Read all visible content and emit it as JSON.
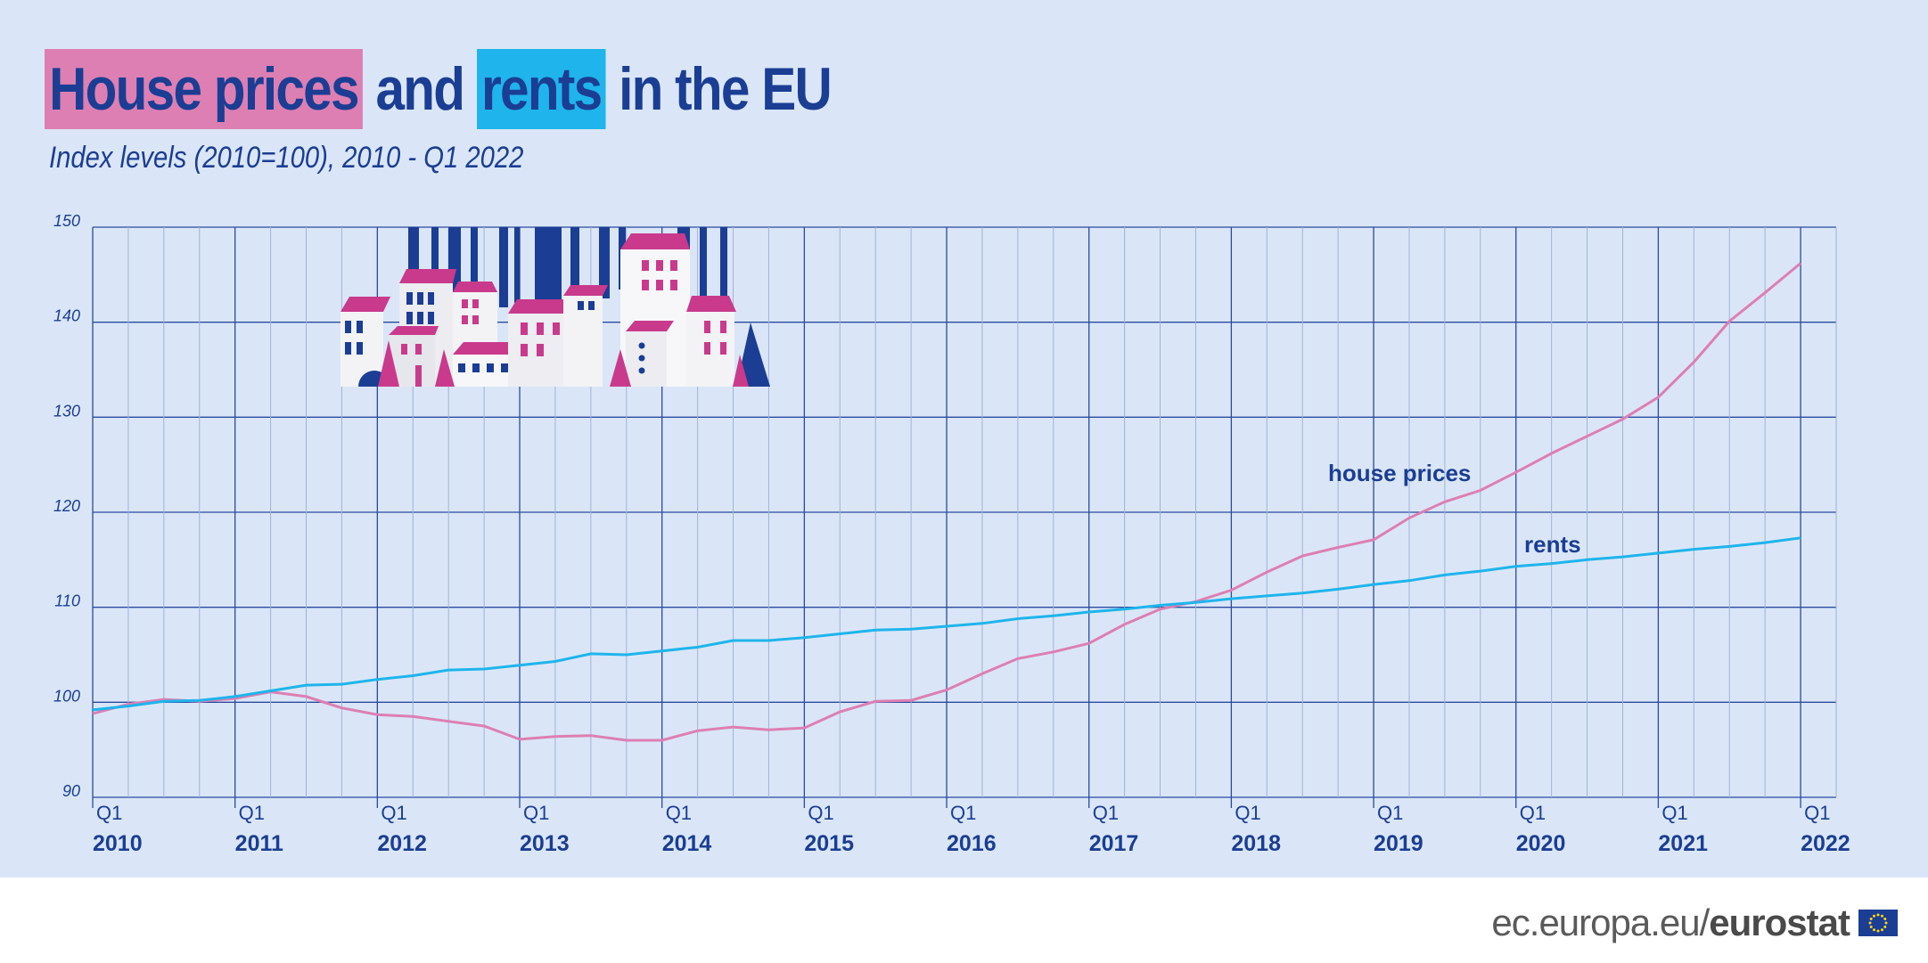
{
  "header": {
    "title_part1": "House prices",
    "title_part2": " and ",
    "title_part3": "rents",
    "title_part4": " in the EU",
    "subtitle": "Index levels (2010=100), 2010 - Q1 2022"
  },
  "footer": {
    "url_prefix": "ec.europa.eu/",
    "brand": "eurostat",
    "logo_icon": "eu-flag-icon"
  },
  "colors": {
    "house_prices": "#dd7fb3",
    "rents": "#1fb4ec",
    "text": "#1b3d93",
    "background": "#dae6f7"
  },
  "chart_data": {
    "type": "line",
    "ylim": [
      90,
      150
    ],
    "yticks": [
      90,
      100,
      110,
      120,
      130,
      140,
      150
    ],
    "xlim": [
      2010.0,
      2022.25
    ],
    "year_labels": [
      "2010",
      "2011",
      "2012",
      "2013",
      "2014",
      "2015",
      "2016",
      "2017",
      "2018",
      "2019",
      "2020",
      "2021",
      "2022"
    ],
    "quarter_label": "Q1",
    "grid": true,
    "x": [
      2010.0,
      2010.25,
      2010.5,
      2010.75,
      2011.0,
      2011.25,
      2011.5,
      2011.75,
      2012.0,
      2012.25,
      2012.5,
      2012.75,
      2013.0,
      2013.25,
      2013.5,
      2013.75,
      2014.0,
      2014.25,
      2014.5,
      2014.75,
      2015.0,
      2015.25,
      2015.5,
      2015.75,
      2016.0,
      2016.25,
      2016.5,
      2016.75,
      2017.0,
      2017.25,
      2017.5,
      2017.75,
      2018.0,
      2018.25,
      2018.5,
      2018.75,
      2019.0,
      2019.25,
      2019.5,
      2019.75,
      2020.0,
      2020.25,
      2020.5,
      2020.75,
      2021.0,
      2021.25,
      2021.5,
      2021.75,
      2022.0
    ],
    "series": [
      {
        "name": "house prices",
        "values": [
          98.8,
          99.8,
          100.3,
          100.1,
          100.4,
          101.1,
          100.6,
          99.4,
          98.7,
          98.5,
          98.0,
          97.5,
          96.1,
          96.4,
          96.5,
          96.0,
          96.0,
          97.0,
          97.4,
          97.1,
          97.3,
          99.0,
          100.1,
          100.2,
          101.3,
          103.0,
          104.6,
          105.3,
          106.2,
          108.2,
          109.8,
          110.6,
          111.8,
          113.7,
          115.4,
          116.3,
          117.1,
          119.4,
          121.1,
          122.3,
          124.2,
          126.2,
          128.0,
          129.8,
          132.1,
          135.8,
          140.1,
          143.1,
          146.2
        ]
      },
      {
        "name": "rents",
        "values": [
          99.2,
          99.6,
          100.1,
          100.2,
          100.6,
          101.2,
          101.8,
          101.9,
          102.4,
          102.8,
          103.4,
          103.5,
          103.9,
          104.3,
          105.1,
          105.0,
          105.4,
          105.8,
          106.5,
          106.5,
          106.8,
          107.2,
          107.6,
          107.7,
          108.0,
          108.3,
          108.8,
          109.1,
          109.5,
          109.8,
          110.2,
          110.5,
          110.9,
          111.2,
          111.5,
          111.9,
          112.4,
          112.8,
          113.4,
          113.8,
          114.3,
          114.6,
          115.0,
          115.3,
          115.7,
          116.1,
          116.4,
          116.8,
          117.3
        ]
      }
    ]
  }
}
